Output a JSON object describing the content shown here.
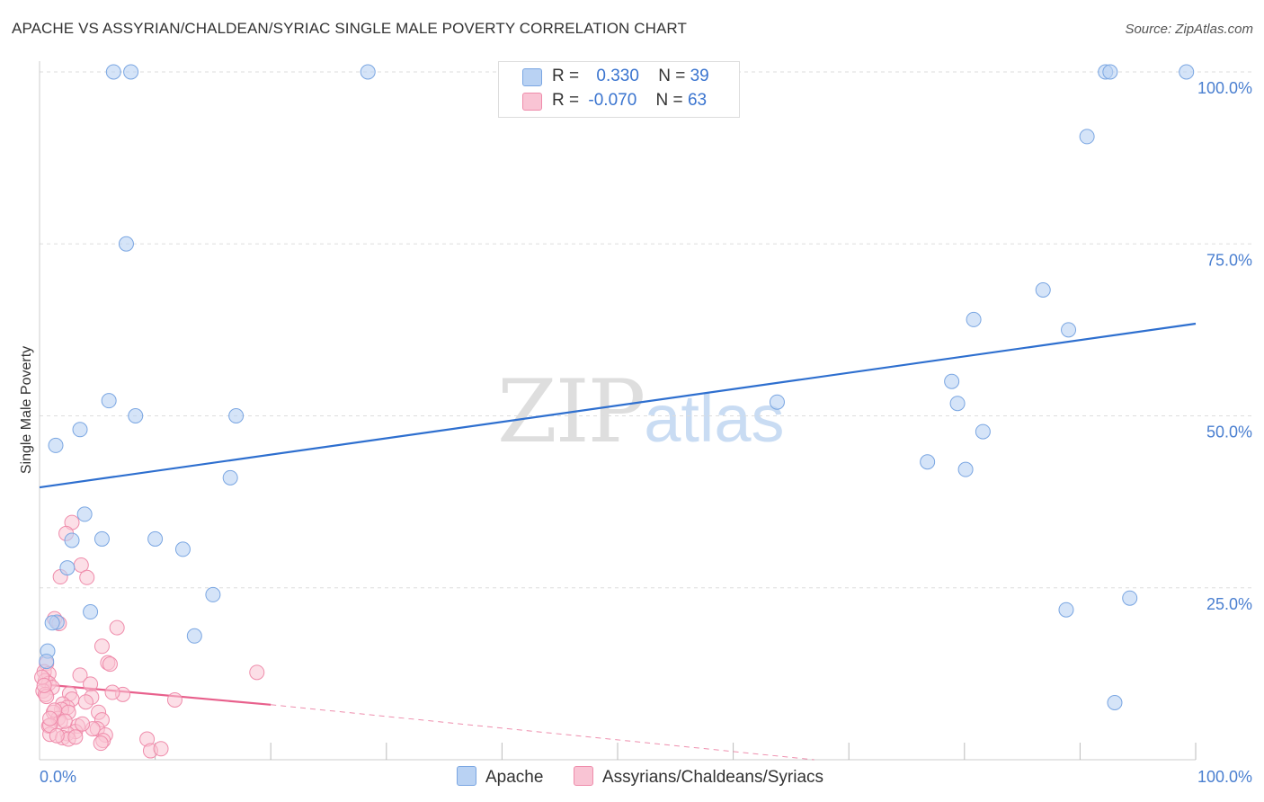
{
  "header": {
    "title": "APACHE VS ASSYRIAN/CHALDEAN/SYRIAC SINGLE MALE POVERTY CORRELATION CHART",
    "source": "Source: ZipAtlas.com"
  },
  "watermark": {
    "zip": "ZIP",
    "atlas": "atlas"
  },
  "legend": {
    "apache": {
      "r_label": "R =",
      "r_value": "0.330",
      "n_label": "N =",
      "n_value": "39"
    },
    "assyrian": {
      "r_label": "R =",
      "r_value": "-0.070",
      "n_label": "N =",
      "n_value": "63"
    }
  },
  "bottom_legend": {
    "apache": "Apache",
    "assyrian": "Assyrians/Chaldeans/Syriacs"
  },
  "colors": {
    "apache_fill": "#b9d2f3",
    "apache_stroke": "#7aa6e2",
    "apache_line": "#2e6fcf",
    "assyrian_fill": "#f9c4d4",
    "assyrian_stroke": "#ef8cab",
    "assyrian_line": "#e8608c",
    "tick_text": "#4a7fd0",
    "grid": "#dddddd"
  },
  "chart_data": {
    "type": "scatter",
    "title": "APACHE VS ASSYRIAN/CHALDEAN/SYRIAC SINGLE MALE POVERTY CORRELATION CHART",
    "xlabel": "",
    "ylabel": "Single Male Poverty",
    "xlim": [
      0,
      100
    ],
    "ylim": [
      0,
      100
    ],
    "x_tick_labels": [
      "0.0%",
      "100.0%"
    ],
    "y_tick_labels": [
      "25.0%",
      "50.0%",
      "75.0%",
      "100.0%"
    ],
    "y_ticks": [
      25,
      50,
      75,
      100
    ],
    "grid": true,
    "legend_position": "top-center",
    "series": [
      {
        "name": "Apache",
        "r": 0.33,
        "n": 39,
        "trend": {
          "x": [
            0,
            100
          ],
          "y": [
            39.6,
            63.4
          ],
          "style": "solid"
        },
        "points": [
          [
            6.4,
            100
          ],
          [
            7.9,
            100
          ],
          [
            28.4,
            100
          ],
          [
            92.2,
            100
          ],
          [
            92.6,
            100
          ],
          [
            99.2,
            100
          ],
          [
            90.6,
            90.6
          ],
          [
            7.5,
            75.0
          ],
          [
            86.8,
            68.3
          ],
          [
            80.8,
            64.0
          ],
          [
            89.0,
            62.5
          ],
          [
            6.0,
            52.2
          ],
          [
            8.3,
            50.0
          ],
          [
            17.0,
            50.0
          ],
          [
            3.5,
            48.0
          ],
          [
            63.8,
            52.0
          ],
          [
            78.9,
            55.0
          ],
          [
            79.4,
            51.8
          ],
          [
            81.6,
            47.7
          ],
          [
            76.8,
            43.3
          ],
          [
            80.1,
            42.2
          ],
          [
            1.4,
            45.7
          ],
          [
            16.5,
            41.0
          ],
          [
            3.9,
            35.7
          ],
          [
            2.8,
            31.9
          ],
          [
            5.4,
            32.1
          ],
          [
            10.0,
            32.1
          ],
          [
            12.4,
            30.6
          ],
          [
            2.4,
            27.9
          ],
          [
            15.0,
            24.0
          ],
          [
            1.5,
            20.0
          ],
          [
            1.1,
            19.9
          ],
          [
            4.4,
            21.5
          ],
          [
            13.4,
            18.0
          ],
          [
            88.8,
            21.8
          ],
          [
            94.3,
            23.5
          ],
          [
            0.7,
            15.8
          ],
          [
            0.6,
            14.3
          ],
          [
            93.0,
            8.3
          ]
        ]
      },
      {
        "name": "Assyrians/Chaldeans/Syriacs",
        "r": -0.07,
        "n": 63,
        "trend": {
          "x": [
            0,
            20,
            67
          ],
          "y": [
            11.0,
            8.0,
            0
          ],
          "style": "solid-then-dashed"
        },
        "points": [
          [
            2.8,
            34.5
          ],
          [
            2.3,
            32.9
          ],
          [
            3.6,
            28.3
          ],
          [
            1.8,
            26.6
          ],
          [
            4.1,
            26.5
          ],
          [
            1.3,
            20.5
          ],
          [
            1.7,
            19.8
          ],
          [
            6.7,
            19.2
          ],
          [
            5.4,
            16.5
          ],
          [
            5.9,
            14.1
          ],
          [
            6.1,
            13.9
          ],
          [
            0.6,
            14.0
          ],
          [
            0.4,
            12.8
          ],
          [
            0.8,
            12.5
          ],
          [
            3.5,
            12.3
          ],
          [
            18.8,
            12.7
          ],
          [
            0.5,
            11.5
          ],
          [
            0.8,
            11.1
          ],
          [
            1.1,
            10.5
          ],
          [
            4.4,
            11.0
          ],
          [
            0.3,
            10.0
          ],
          [
            0.5,
            9.5
          ],
          [
            0.6,
            9.2
          ],
          [
            2.6,
            9.6
          ],
          [
            7.2,
            9.5
          ],
          [
            4.5,
            9.1
          ],
          [
            2.8,
            8.8
          ],
          [
            11.7,
            8.7
          ],
          [
            2.0,
            8.1
          ],
          [
            2.4,
            7.6
          ],
          [
            1.9,
            7.3
          ],
          [
            1.2,
            6.9
          ],
          [
            2.5,
            6.9
          ],
          [
            5.1,
            6.9
          ],
          [
            1.6,
            6.0
          ],
          [
            5.4,
            5.8
          ],
          [
            1.8,
            5.5
          ],
          [
            0.8,
            4.9
          ],
          [
            3.3,
            4.9
          ],
          [
            5.0,
            4.5
          ],
          [
            3.1,
            4.1
          ],
          [
            4.6,
            4.5
          ],
          [
            2.4,
            3.8
          ],
          [
            5.7,
            3.6
          ],
          [
            0.9,
            3.7
          ],
          [
            2.0,
            3.2
          ],
          [
            2.5,
            3.0
          ],
          [
            5.5,
            2.8
          ],
          [
            9.3,
            3.0
          ],
          [
            5.3,
            2.4
          ],
          [
            9.6,
            1.3
          ],
          [
            10.5,
            1.6
          ],
          [
            0.9,
            5.0
          ],
          [
            1.5,
            3.5
          ],
          [
            3.1,
            3.3
          ],
          [
            0.2,
            12.0
          ],
          [
            0.4,
            10.8
          ],
          [
            1.3,
            7.2
          ],
          [
            4.0,
            8.4
          ],
          [
            6.3,
            9.8
          ],
          [
            0.9,
            6.0
          ],
          [
            2.2,
            5.6
          ],
          [
            3.7,
            5.2
          ]
        ]
      }
    ]
  }
}
